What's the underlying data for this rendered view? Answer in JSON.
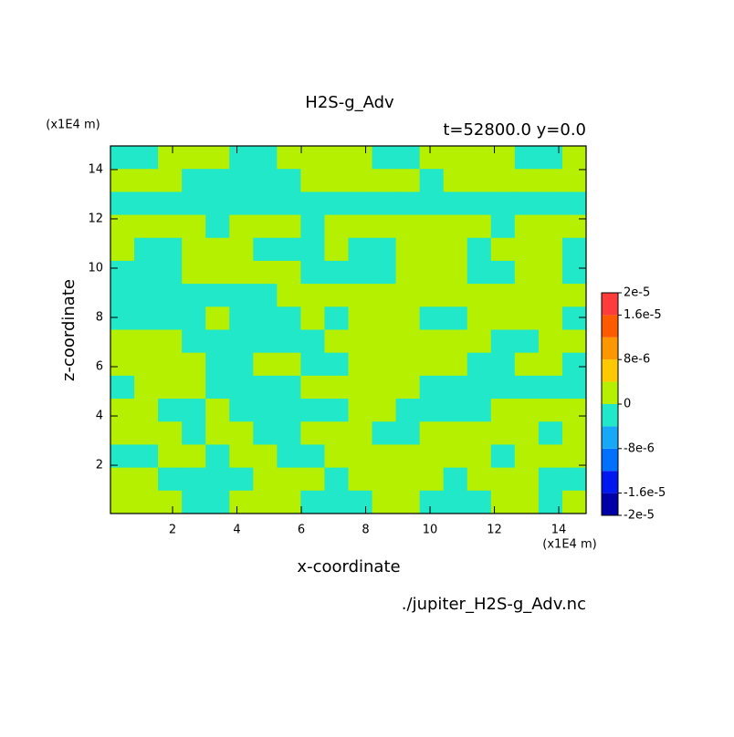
{
  "chart_data": {
    "type": "contour",
    "title": "H2S-g_Adv",
    "subtitle": "t=52800.0 y=0.0",
    "xlabel": "x-coordinate",
    "ylabel": "z-coordinate",
    "x_unit": "(x1E4 m)",
    "y_unit": "(x1E4 m)",
    "source": "./jupiter_H2S-g_Adv.nc",
    "xlim": [
      0.07,
      14.85
    ],
    "ylim": [
      0.04,
      14.96
    ],
    "xticks": [
      2,
      4,
      6,
      8,
      10,
      12,
      14
    ],
    "yticks": [
      2,
      4,
      6,
      8,
      10,
      12,
      14
    ],
    "levels": [
      -2e-05,
      -1.6e-05,
      -1.2e-05,
      -8e-06,
      -4e-06,
      0,
      4e-06,
      8e-06,
      1.2e-05,
      1.6e-05,
      2e-05
    ],
    "colors": [
      "#0000a8",
      "#0018f0",
      "#0070ff",
      "#18a8f8",
      "#20e8c8",
      "#b4f000",
      "#ffc800",
      "#ff9800",
      "#ff5a00",
      "#ff3c3c"
    ],
    "colorbar_ticks": [
      {
        "value": 2e-05,
        "label": "2e-5"
      },
      {
        "value": 1.6e-05,
        "label": "1.6e-5"
      },
      {
        "value": 8e-06,
        "label": "8e-6"
      },
      0,
      {
        "value": -8e-06,
        "label": "-8e-6"
      },
      {
        "value": -1.6e-05,
        "label": "-1.6e-5"
      },
      {
        "value": -2e-05,
        "label": "-2e-5"
      }
    ],
    "field": [
      [
        -2e-06,
        -2e-06,
        2e-06,
        2e-06,
        2e-06,
        -2e-06,
        -2e-06,
        2e-06,
        2e-06,
        2e-06,
        2e-06,
        -2e-06,
        -2e-06,
        2e-06,
        2e-06,
        2e-06,
        2e-06,
        -2e-06,
        -2e-06,
        2e-06
      ],
      [
        2e-06,
        2e-06,
        2e-06,
        -2e-06,
        -2e-06,
        -2e-06,
        -2e-06,
        -2e-06,
        2e-06,
        2e-06,
        2e-06,
        2e-06,
        2e-06,
        -2e-06,
        2e-06,
        2e-06,
        2e-06,
        2e-06,
        2e-06,
        2e-06
      ],
      [
        -2e-06,
        -2e-06,
        -2e-06,
        -2e-06,
        -2e-06,
        -2e-06,
        -2e-06,
        -2e-06,
        -2e-06,
        -2e-06,
        -2e-06,
        -2e-06,
        -2e-06,
        -2e-06,
        -2e-06,
        -2e-06,
        -2e-06,
        -2e-06,
        -2e-06,
        -2e-06
      ],
      [
        2e-06,
        2e-06,
        2e-06,
        2e-06,
        -2e-06,
        2e-06,
        2e-06,
        2e-06,
        -2e-06,
        2e-06,
        2e-06,
        2e-06,
        2e-06,
        2e-06,
        2e-06,
        2e-06,
        -2e-06,
        2e-06,
        2e-06,
        2e-06
      ],
      [
        2e-06,
        -2e-06,
        -2e-06,
        2e-06,
        2e-06,
        2e-06,
        -2e-06,
        -2e-06,
        -2e-06,
        2e-06,
        -2e-06,
        -2e-06,
        2e-06,
        2e-06,
        2e-06,
        -2e-06,
        2e-06,
        2e-06,
        2e-06,
        -2e-06
      ],
      [
        -2e-06,
        -2e-06,
        -2e-06,
        2e-06,
        2e-06,
        2e-06,
        2e-06,
        2e-06,
        -2e-06,
        -2e-06,
        -2e-06,
        -2e-06,
        2e-06,
        2e-06,
        2e-06,
        -2e-06,
        -2e-06,
        2e-06,
        2e-06,
        -2e-06
      ],
      [
        -2e-06,
        -2e-06,
        -2e-06,
        -2e-06,
        -2e-06,
        -2e-06,
        -2e-06,
        2e-06,
        2e-06,
        2e-06,
        2e-06,
        2e-06,
        2e-06,
        2e-06,
        2e-06,
        2e-06,
        2e-06,
        2e-06,
        2e-06,
        2e-06
      ],
      [
        -2e-06,
        -2e-06,
        -2e-06,
        -2e-06,
        2e-06,
        -2e-06,
        -2e-06,
        -2e-06,
        2e-06,
        -2e-06,
        2e-06,
        2e-06,
        2e-06,
        -2e-06,
        -2e-06,
        2e-06,
        2e-06,
        2e-06,
        2e-06,
        -2e-06
      ],
      [
        2e-06,
        2e-06,
        2e-06,
        -2e-06,
        -2e-06,
        -2e-06,
        -2e-06,
        -2e-06,
        -2e-06,
        2e-06,
        2e-06,
        2e-06,
        2e-06,
        2e-06,
        2e-06,
        2e-06,
        -2e-06,
        -2e-06,
        2e-06,
        2e-06
      ],
      [
        2e-06,
        2e-06,
        2e-06,
        2e-06,
        -2e-06,
        -2e-06,
        2e-06,
        2e-06,
        -2e-06,
        -2e-06,
        2e-06,
        2e-06,
        2e-06,
        2e-06,
        2e-06,
        -2e-06,
        -2e-06,
        2e-06,
        2e-06,
        -2e-06
      ],
      [
        -2e-06,
        2e-06,
        2e-06,
        2e-06,
        -2e-06,
        -2e-06,
        -2e-06,
        -2e-06,
        2e-06,
        2e-06,
        2e-06,
        2e-06,
        2e-06,
        -2e-06,
        -2e-06,
        -2e-06,
        -2e-06,
        -2e-06,
        -2e-06,
        -2e-06
      ],
      [
        2e-06,
        2e-06,
        -2e-06,
        -2e-06,
        2e-06,
        -2e-06,
        -2e-06,
        -2e-06,
        -2e-06,
        -2e-06,
        2e-06,
        2e-06,
        -2e-06,
        -2e-06,
        -2e-06,
        -2e-06,
        2e-06,
        2e-06,
        2e-06,
        2e-06
      ],
      [
        2e-06,
        2e-06,
        2e-06,
        -2e-06,
        2e-06,
        2e-06,
        -2e-06,
        -2e-06,
        2e-06,
        2e-06,
        2e-06,
        -2e-06,
        -2e-06,
        2e-06,
        2e-06,
        2e-06,
        2e-06,
        2e-06,
        -2e-06,
        2e-06
      ],
      [
        -2e-06,
        -2e-06,
        2e-06,
        2e-06,
        -2e-06,
        2e-06,
        2e-06,
        -2e-06,
        -2e-06,
        2e-06,
        2e-06,
        2e-06,
        2e-06,
        2e-06,
        2e-06,
        2e-06,
        -2e-06,
        2e-06,
        2e-06,
        2e-06
      ],
      [
        2e-06,
        2e-06,
        -2e-06,
        -2e-06,
        -2e-06,
        -2e-06,
        2e-06,
        2e-06,
        2e-06,
        -2e-06,
        2e-06,
        2e-06,
        2e-06,
        2e-06,
        -2e-06,
        2e-06,
        2e-06,
        2e-06,
        -2e-06,
        -2e-06
      ],
      [
        2e-06,
        2e-06,
        2e-06,
        -2e-06,
        -2e-06,
        2e-06,
        2e-06,
        2e-06,
        -2e-06,
        -2e-06,
        -2e-06,
        2e-06,
        2e-06,
        -2e-06,
        -2e-06,
        -2e-06,
        2e-06,
        2e-06,
        -2e-06,
        2e-06
      ]
    ]
  }
}
